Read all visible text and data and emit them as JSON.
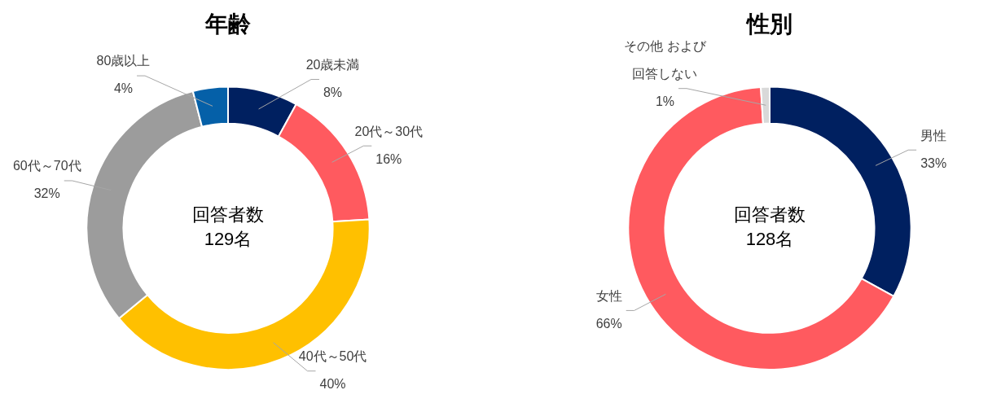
{
  "chart_data": [
    {
      "type": "donut",
      "title": "年齢",
      "categories": [
        "20歳未満",
        "20代～30代",
        "40代～50代",
        "60代～70代",
        "80歳以上"
      ],
      "values": [
        8,
        16,
        40,
        32,
        4
      ],
      "value_labels": [
        "8%",
        "16%",
        "40%",
        "32%",
        "4%"
      ],
      "colors": [
        "#002060",
        "#ff5a5f",
        "#ffc000",
        "#9c9c9c",
        "#0560a8"
      ],
      "annotations": [
        "回答者数\n129名"
      ]
    },
    {
      "type": "donut",
      "title": "性別",
      "categories": [
        "男性",
        "女性",
        "その他 および回答しない"
      ],
      "values": [
        33,
        66,
        1
      ],
      "value_labels": [
        "33%",
        "66%",
        "1%"
      ],
      "colors": [
        "#002060",
        "#ff5a5f",
        "#d9d9d9"
      ],
      "annotations": [
        "回答者数\n128名"
      ]
    }
  ]
}
